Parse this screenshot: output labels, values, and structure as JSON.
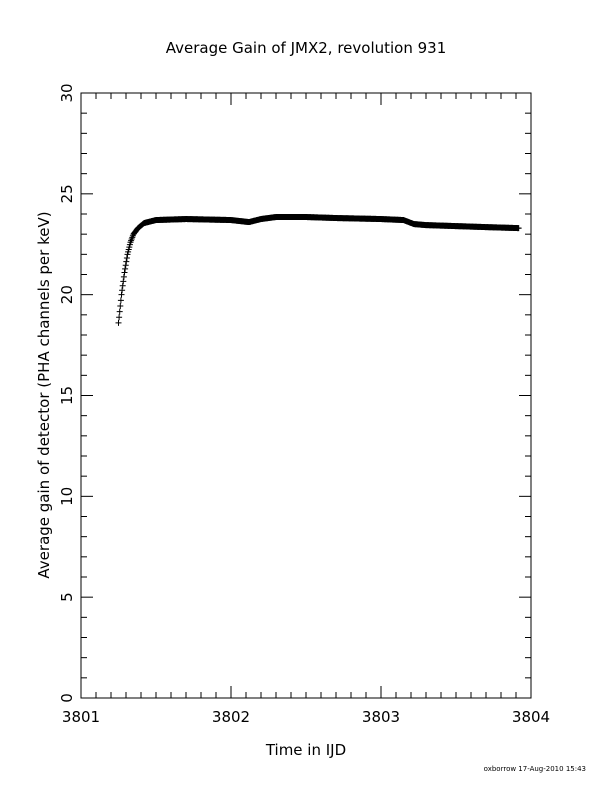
{
  "chart_data": {
    "type": "scatter",
    "title": "Average Gain of JMX2, revolution 931",
    "xlabel": "Time in IJD",
    "ylabel": "Average gain of detector (PHA channels per keV)",
    "xlim": [
      3801,
      3804
    ],
    "ylim": [
      0,
      30
    ],
    "x_ticks": [
      "3801",
      "3802",
      "3803",
      "3804"
    ],
    "y_ticks": [
      "0",
      "5",
      "10",
      "15",
      "20",
      "25",
      "30"
    ],
    "x_minor_step": 0.1,
    "y_minor_step": 1,
    "grid": false,
    "marker": "plus",
    "series": [
      {
        "color": "#000000",
        "keypoints": {
          "x": [
            3801.25,
            3801.27,
            3801.29,
            3801.31,
            3801.33,
            3801.35,
            3801.38,
            3801.42,
            3801.5,
            3801.7,
            3802.0,
            3802.12,
            3802.2,
            3802.3,
            3802.5,
            3802.7,
            3803.0,
            3803.15,
            3803.22,
            3803.3,
            3803.5,
            3803.7,
            3803.92
          ],
          "y": [
            18.6,
            20.0,
            21.1,
            22.0,
            22.6,
            23.0,
            23.3,
            23.55,
            23.7,
            23.75,
            23.7,
            23.6,
            23.75,
            23.85,
            23.85,
            23.8,
            23.75,
            23.7,
            23.5,
            23.45,
            23.4,
            23.35,
            23.3
          ]
        }
      }
    ]
  },
  "footer": "oxborrow 17-Aug-2010 15:43"
}
